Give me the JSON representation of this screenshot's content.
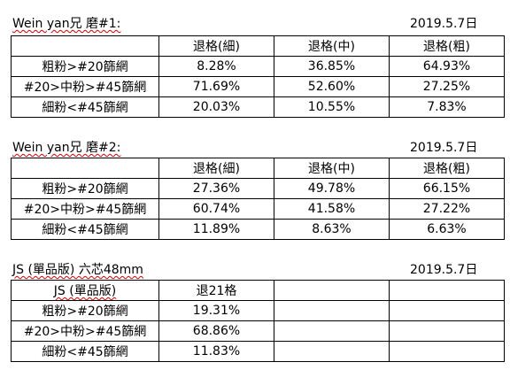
{
  "sections": [
    {
      "title": "Wein yan兄 磨#1:",
      "date": "2019.5.7日",
      "header": [
        "",
        "退格(細)",
        "退格(中)",
        "退格(粗)"
      ],
      "rows": [
        [
          "粗粉>#20篩網",
          "8.28%",
          "36.85%",
          "64.93%"
        ],
        [
          "#20>中粉>#45篩網",
          "71.69%",
          "52.60%",
          "27.25%"
        ],
        [
          "細粉<#45篩網",
          "20.03%",
          "10.55%",
          "7.83%"
        ]
      ]
    },
    {
      "title": "Wein yan兄 磨#2:",
      "date": "2019.5.7日",
      "header": [
        "",
        "退格(細)",
        "退格(中)",
        "退格(粗)"
      ],
      "rows": [
        [
          "粗粉>#20篩網",
          "27.36%",
          "49.78%",
          "66.15%"
        ],
        [
          "#20>中粉>#45篩網",
          "60.74%",
          "41.58%",
          "27.22%"
        ],
        [
          "細粉<#45篩網",
          "11.89%",
          "8.63%",
          "6.63%"
        ]
      ]
    },
    {
      "title": "JS (單品版) 六芯48mm",
      "date": "2019.5.7日",
      "header": [
        "JS (單品版)",
        "退21格",
        "",
        ""
      ],
      "rows": [
        [
          "粗粉>#20篩網",
          "19.31%",
          "",
          ""
        ],
        [
          "#20>中粉>#45篩網",
          "68.86%",
          "",
          ""
        ],
        [
          "細粉<#45篩網",
          "11.83%",
          "",
          ""
        ]
      ]
    }
  ]
}
